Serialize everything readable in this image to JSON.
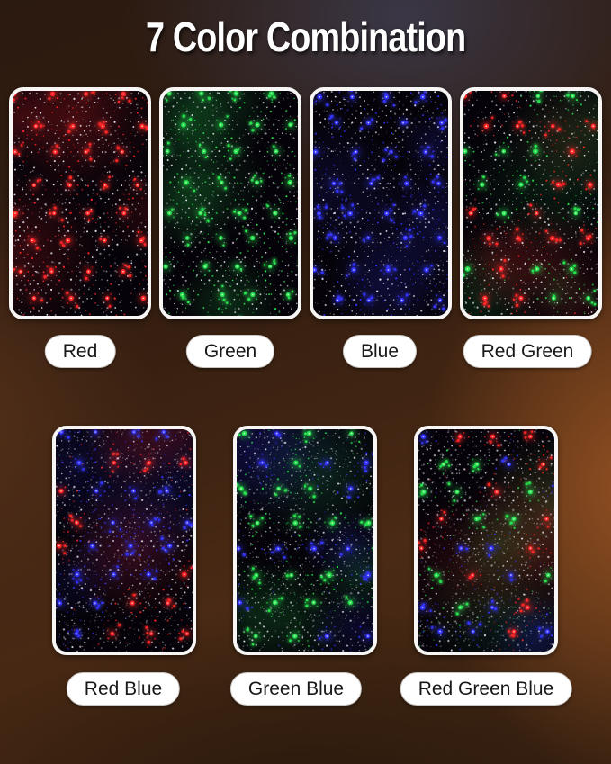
{
  "title": "7 Color Combination",
  "palette": {
    "red": "#ff2626",
    "green": "#27e24e",
    "blue": "#3434ff",
    "white_dot": "#ebebf5",
    "pill_bg": "#ffffff",
    "pill_text": "#181818"
  },
  "panels": [
    {
      "label": "Red",
      "colors": [
        "#ff2626"
      ]
    },
    {
      "label": "Green",
      "colors": [
        "#27e24e"
      ]
    },
    {
      "label": "Blue",
      "colors": [
        "#3434ff"
      ]
    },
    {
      "label": "Red Green",
      "colors": [
        "#ff2626",
        "#27e24e"
      ]
    },
    {
      "label": "Red Blue",
      "colors": [
        "#ff2626",
        "#3434ff"
      ]
    },
    {
      "label": "Green Blue",
      "colors": [
        "#27e24e",
        "#3434ff"
      ]
    },
    {
      "label": "Red Green Blue",
      "colors": [
        "#ff2626",
        "#27e24e",
        "#3434ff"
      ]
    }
  ]
}
